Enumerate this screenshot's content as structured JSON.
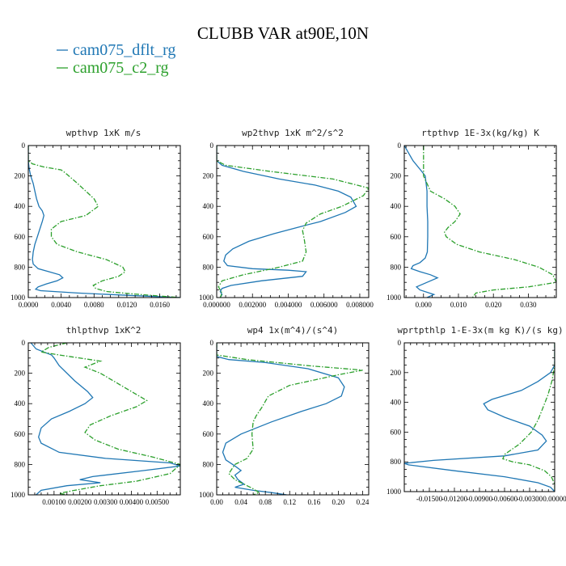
{
  "figure_title": "CLUBB VAR at90E,10N",
  "legend": [
    {
      "label": "cam075_dflt_rg",
      "color": "#1f77b4",
      "dash": "solid"
    },
    {
      "label": "cam075_c2_rg",
      "color": "#2ca02c",
      "dash": "dashdot"
    }
  ],
  "chart_data": [
    {
      "type": "line",
      "title": "wpthvp  1xK m/s",
      "xlim": [
        0,
        0.0185
      ],
      "ylim": [
        1000,
        0
      ],
      "xticks": [
        0,
        0.004,
        0.008,
        0.012,
        0.016
      ],
      "xtick_labels": [
        "0.0000",
        "0.0040",
        "0.0080",
        "0.0120",
        "0.0160"
      ],
      "yticks": [
        0,
        200,
        400,
        600,
        800,
        1000
      ],
      "ytick_labels": [
        "0",
        "200",
        "400",
        "600",
        "800",
        "1000"
      ],
      "series": [
        {
          "name": "cam075_dflt_rg",
          "x": [
            0,
            0,
            0.0001,
            0.0003,
            0.0006,
            0.0008,
            0.001,
            0.0013,
            0.0017,
            0.0019,
            0.0017,
            0.0014,
            0.0011,
            0.0008,
            0.0006,
            0.0005,
            0.0006,
            0.0012,
            0.0025,
            0.0038,
            0.0042,
            0.0035,
            0.0022,
            0.0012,
            0.0009,
            0.0015,
            0.006,
            0.012,
            0.0185
          ],
          "y": [
            0,
            100,
            150,
            200,
            250,
            300,
            350,
            400,
            430,
            460,
            500,
            550,
            600,
            650,
            700,
            750,
            780,
            810,
            830,
            850,
            870,
            890,
            910,
            930,
            945,
            955,
            970,
            985,
            1000
          ]
        },
        {
          "name": "cam075_c2_rg",
          "x": [
            0,
            0,
            0.0005,
            0.0018,
            0.004,
            0.0045,
            0.006,
            0.008,
            0.0085,
            0.007,
            0.004,
            0.0028,
            0.0028,
            0.0035,
            0.006,
            0.0095,
            0.0115,
            0.0118,
            0.011,
            0.009,
            0.0079,
            0.0082,
            0.0095,
            0.0125,
            0.016,
            0.0185
          ],
          "y": [
            0,
            100,
            120,
            140,
            160,
            180,
            250,
            350,
            400,
            460,
            500,
            550,
            600,
            650,
            700,
            750,
            800,
            830,
            860,
            890,
            920,
            940,
            960,
            975,
            990,
            1000
          ]
        }
      ]
    },
    {
      "type": "line",
      "title": "wp2thvp  1xK m^2/s^2",
      "xlim": [
        0,
        0.0085
      ],
      "ylim": [
        1000,
        0
      ],
      "xticks": [
        0,
        0.002,
        0.004,
        0.006,
        0.008
      ],
      "xtick_labels": [
        "0.000000",
        "0.002000",
        "0.004000",
        "0.006000",
        "0.008000"
      ],
      "yticks": [
        0,
        200,
        400,
        600,
        800,
        1000
      ],
      "ytick_labels": [
        "0",
        "200",
        "400",
        "600",
        "800",
        "1000"
      ],
      "series": [
        {
          "name": "cam075_dflt_rg",
          "x": [
            0,
            0,
            0.0003,
            0.0015,
            0.0035,
            0.0055,
            0.0068,
            0.0075,
            0.0078,
            0.0072,
            0.0058,
            0.0048,
            0.0032,
            0.0018,
            0.0009,
            0.0005,
            0.0004,
            0.0006,
            0.002,
            0.004,
            0.005,
            0.0048,
            0.0025,
            0.0008,
            0.0003,
            0.0002,
            0.0003,
            0.0002
          ],
          "y": [
            0,
            100,
            130,
            170,
            220,
            260,
            300,
            340,
            400,
            440,
            500,
            530,
            580,
            630,
            680,
            720,
            760,
            790,
            810,
            820,
            830,
            860,
            890,
            920,
            940,
            960,
            980,
            1000
          ]
        },
        {
          "name": "cam075_c2_rg",
          "x": [
            0,
            0,
            0.0005,
            0.003,
            0.0065,
            0.0085,
            0.0082,
            0.007,
            0.0058,
            0.005,
            0.0048,
            0.0049,
            0.005,
            0.0048,
            0.0035,
            0.0015,
            0.0003,
            0.0001,
            0.0003,
            0.0002
          ],
          "y": [
            0,
            100,
            130,
            170,
            220,
            280,
            330,
            400,
            450,
            510,
            560,
            620,
            700,
            760,
            800,
            850,
            890,
            930,
            970,
            1000
          ]
        }
      ]
    },
    {
      "type": "line",
      "title": "rtpthvp  1E-3x(kg/kg) K",
      "xlim": [
        -0.0055,
        0.038
      ],
      "ylim": [
        1000,
        0
      ],
      "xticks": [
        0,
        0.01,
        0.02,
        0.03
      ],
      "xtick_labels": [
        "0.000",
        "0.010",
        "0.020",
        "0.030"
      ],
      "yticks": [
        0,
        200,
        400,
        600,
        800,
        1000
      ],
      "ytick_labels": [
        "0",
        "200",
        "400",
        "600",
        "800",
        "1000"
      ],
      "series": [
        {
          "name": "cam075_dflt_rg",
          "x": [
            -0.0055,
            -0.003,
            -0.0005,
            0.0005,
            0.001,
            0.001,
            0.0012,
            0.0012,
            0.0011,
            0.0005,
            -0.001,
            -0.003,
            -0.0035,
            -0.001,
            0.002,
            0.004,
            0.001,
            -0.002,
            -0.001,
            0.003,
            0.001
          ],
          "y": [
            0,
            100,
            170,
            200,
            300,
            400,
            500,
            600,
            700,
            740,
            770,
            790,
            810,
            830,
            850,
            870,
            900,
            930,
            950,
            980,
            1000
          ]
        },
        {
          "name": "cam075_c2_rg",
          "x": [
            0,
            0,
            0,
            0,
            0.002,
            0.006,
            0.009,
            0.0105,
            0.009,
            0.007,
            0.006,
            0.0065,
            0.0095,
            0.016,
            0.026,
            0.033,
            0.037,
            0.038,
            0.03,
            0.02,
            0.015,
            0.014
          ],
          "y": [
            0,
            100,
            150,
            200,
            300,
            350,
            400,
            450,
            500,
            540,
            570,
            600,
            650,
            700,
            750,
            800,
            850,
            900,
            930,
            950,
            970,
            1000
          ]
        }
      ]
    },
    {
      "type": "line",
      "title": "thlpthvp  1xK^2",
      "xlim": [
        0,
        0.0059
      ],
      "ylim": [
        1000,
        0
      ],
      "xticks": [
        0.001,
        0.002,
        0.003,
        0.004,
        0.005
      ],
      "xtick_labels": [
        "0.00100",
        "0.00200",
        "0.00300",
        "0.00400",
        "0.00500"
      ],
      "yticks": [
        0,
        200,
        400,
        600,
        800,
        1000
      ],
      "ytick_labels": [
        "0",
        "200",
        "400",
        "600",
        "800",
        "1000"
      ],
      "series": [
        {
          "name": "cam075_dflt_rg",
          "x": [
            0.0001,
            0.0003,
            0.0006,
            0.0009,
            0.001,
            0.0012,
            0.0018,
            0.0023,
            0.0025,
            0.0022,
            0.0016,
            0.0009,
            0.0005,
            0.0004,
            0.0005,
            0.0012,
            0.003,
            0.0055,
            0.0059,
            0.0045,
            0.0025,
            0.002,
            0.0028,
            0.0015,
            0.0005,
            0.0003
          ],
          "y": [
            0,
            40,
            60,
            80,
            100,
            150,
            250,
            320,
            360,
            400,
            450,
            500,
            560,
            620,
            660,
            720,
            760,
            790,
            810,
            840,
            880,
            900,
            920,
            940,
            970,
            1000
          ]
        },
        {
          "name": "cam075_c2_rg",
          "x": [
            0.0015,
            0.0008,
            0.0005,
            0.0012,
            0.0028,
            0.0022,
            0.0028,
            0.0038,
            0.0046,
            0.0042,
            0.0032,
            0.0024,
            0.0022,
            0.0026,
            0.0035,
            0.0048,
            0.0059,
            0.0055,
            0.0042,
            0.0028,
            0.0018,
            0.0012,
            0.0015
          ],
          "y": [
            0,
            30,
            60,
            80,
            120,
            160,
            200,
            300,
            380,
            420,
            480,
            540,
            590,
            640,
            700,
            750,
            800,
            860,
            910,
            940,
            970,
            990,
            1000
          ]
        }
      ]
    },
    {
      "type": "line",
      "title": "wp4  1x(m^4)/(s^4)",
      "xlim": [
        0,
        0.25
      ],
      "ylim": [
        1000,
        0
      ],
      "xticks": [
        0,
        0.04,
        0.08,
        0.12,
        0.16,
        0.2,
        0.24
      ],
      "xtick_labels": [
        "0.00",
        "0.04",
        "0.08",
        "0.12",
        "0.16",
        "0.20",
        "0.24"
      ],
      "yticks": [
        0,
        200,
        400,
        600,
        800,
        1000
      ],
      "ytick_labels": [
        "0",
        "200",
        "400",
        "600",
        "800",
        "1000"
      ],
      "series": [
        {
          "name": "cam075_dflt_rg",
          "x": [
            0,
            0,
            0.02,
            0.08,
            0.15,
            0.2,
            0.21,
            0.205,
            0.18,
            0.14,
            0.09,
            0.04,
            0.015,
            0.01,
            0.015,
            0.03,
            0.04,
            0.03,
            0.035,
            0.045,
            0.03,
            0.06,
            0.09,
            0.115
          ],
          "y": [
            0,
            90,
            110,
            130,
            170,
            230,
            290,
            350,
            400,
            450,
            520,
            600,
            660,
            720,
            770,
            810,
            840,
            870,
            900,
            930,
            950,
            970,
            985,
            1000
          ]
        },
        {
          "name": "cam075_c2_rg",
          "x": [
            0,
            0,
            0.05,
            0.15,
            0.24,
            0.2,
            0.12,
            0.085,
            0.075,
            0.065,
            0.06,
            0.058,
            0.06,
            0.05,
            0.03,
            0.02,
            0.03,
            0.045,
            0.06,
            0.07,
            0.06
          ],
          "y": [
            0,
            80,
            110,
            150,
            180,
            210,
            280,
            350,
            420,
            480,
            520,
            600,
            700,
            760,
            800,
            860,
            900,
            930,
            960,
            985,
            1000
          ]
        }
      ]
    },
    {
      "type": "line",
      "title": "wprtpthlp  1-E-3x(m kg K)/(s kg)",
      "xlim": [
        -0.018,
        0
      ],
      "ylim": [
        1000,
        0
      ],
      "xticks": [
        -0.015,
        -0.012,
        -0.009,
        -0.006,
        -0.003,
        0
      ],
      "xtick_labels": [
        "-0.01500",
        "-0.01200",
        "-0.00900",
        "-0.00600",
        "-0.00300",
        "0.00000"
      ],
      "yticks": [
        0,
        200,
        400,
        600,
        800,
        1000
      ],
      "ytick_labels": [
        "0",
        "200",
        "400",
        "600",
        "800",
        "1000"
      ],
      "series": [
        {
          "name": "cam075_dflt_rg",
          "x": [
            0,
            0,
            -0.0005,
            -0.002,
            -0.004,
            -0.0075,
            -0.0085,
            -0.008,
            -0.006,
            -0.003,
            -0.0015,
            -0.001,
            -0.002,
            -0.006,
            -0.0145,
            -0.018,
            -0.0175,
            -0.012,
            -0.006,
            -0.002,
            -0.0005,
            0
          ],
          "y": [
            0,
            150,
            200,
            260,
            320,
            380,
            410,
            450,
            500,
            560,
            620,
            660,
            720,
            760,
            790,
            810,
            820,
            860,
            900,
            940,
            970,
            1000
          ]
        },
        {
          "name": "cam075_c2_rg",
          "x": [
            0,
            0,
            -0.0003,
            -0.0008,
            -0.0015,
            -0.002,
            -0.0028,
            -0.0042,
            -0.006,
            -0.0062,
            -0.005,
            -0.003,
            -0.0012,
            -0.0004,
            0,
            0
          ],
          "y": [
            0,
            150,
            250,
            350,
            450,
            520,
            600,
            680,
            750,
            780,
            800,
            820,
            860,
            900,
            950,
            1000
          ]
        }
      ]
    }
  ]
}
